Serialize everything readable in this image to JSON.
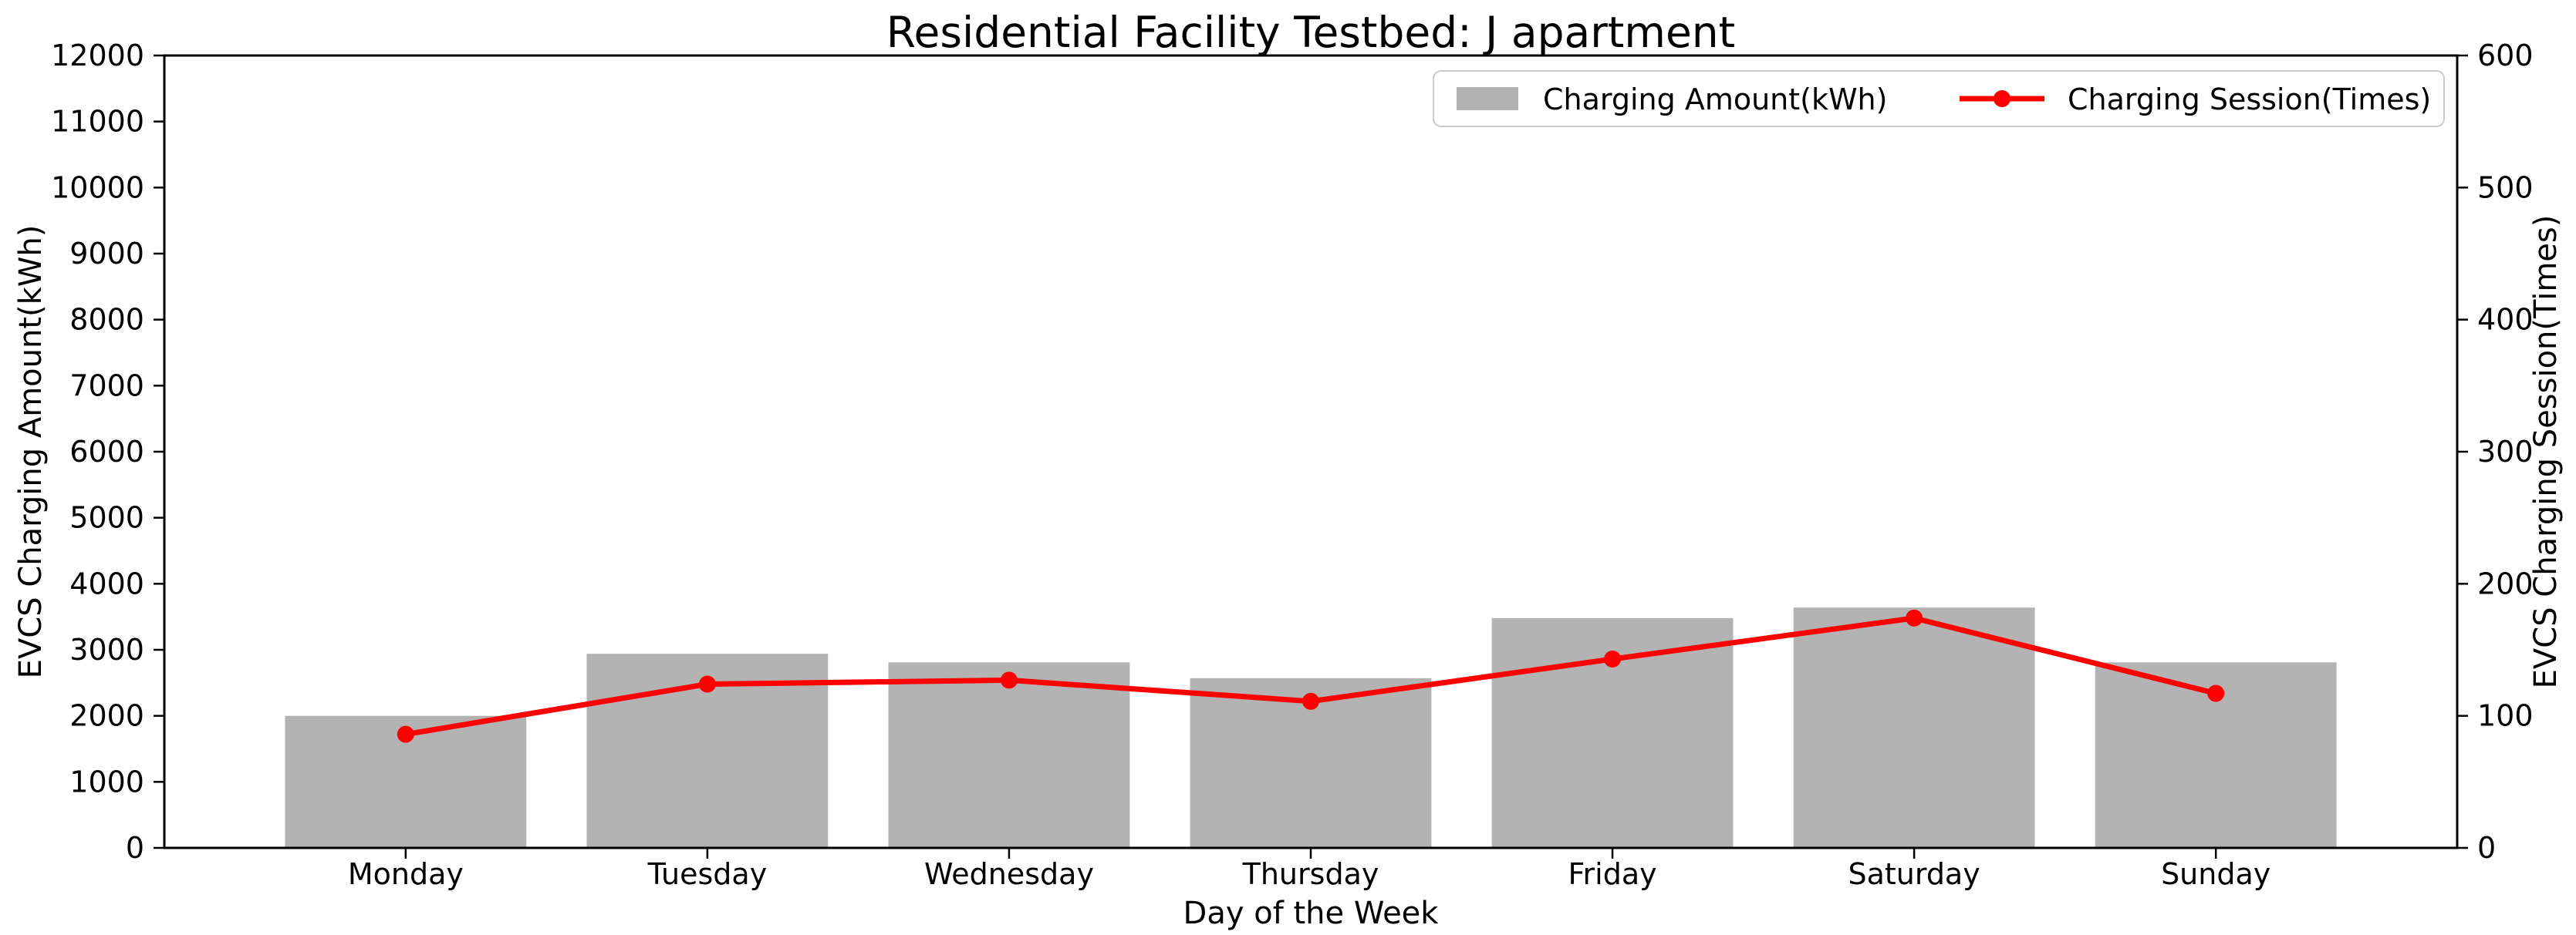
{
  "figure": {
    "title": "Residential Facility Testbed: J apartment"
  },
  "chart_data": {
    "type": "bar",
    "subtype": "bar+line-dual-axis",
    "title": "Residential Facility Testbed: J apartment",
    "categories": [
      "Monday",
      "Tuesday",
      "Wednesday",
      "Thursday",
      "Friday",
      "Saturday",
      "Sunday"
    ],
    "xlabel": "Day of the Week",
    "left_axis": {
      "label": "EVCS Charging Amount(kWh)",
      "min": 0,
      "max": 12000,
      "tick_step": 1000,
      "ticks": [
        "0",
        "1000",
        "2000",
        "3000",
        "4000",
        "5000",
        "6000",
        "7000",
        "8000",
        "9000",
        "10000",
        "11000",
        "12000"
      ]
    },
    "right_axis": {
      "label": "EVCS Charging Session(Times)",
      "min": 0,
      "max": 600,
      "tick_step": 100,
      "ticks": [
        "0",
        "100",
        "200",
        "300",
        "400",
        "500",
        "600"
      ]
    },
    "series": [
      {
        "name": "Charging Amount(kWh)",
        "type": "bar",
        "axis": "left",
        "color": "#b3b3b3",
        "values": [
          2000,
          2940,
          2810,
          2570,
          3480,
          3640,
          2810
        ]
      },
      {
        "name": "Charging Session(Times)",
        "type": "line",
        "axis": "right",
        "color": "#ff0000",
        "values": [
          86,
          124,
          127,
          111,
          143,
          174,
          117
        ]
      }
    ],
    "legend": {
      "position": "upper right",
      "labels": [
        "Charging Amount(kWh)",
        "Charging Session(Times)"
      ]
    },
    "bar_width_fraction": 0.8,
    "x_margin_units": 0.8,
    "grid": false,
    "background": "#ffffff",
    "spine_color": "#000000",
    "text_color": "#000000",
    "legend_frame_color": "#cccccc"
  }
}
